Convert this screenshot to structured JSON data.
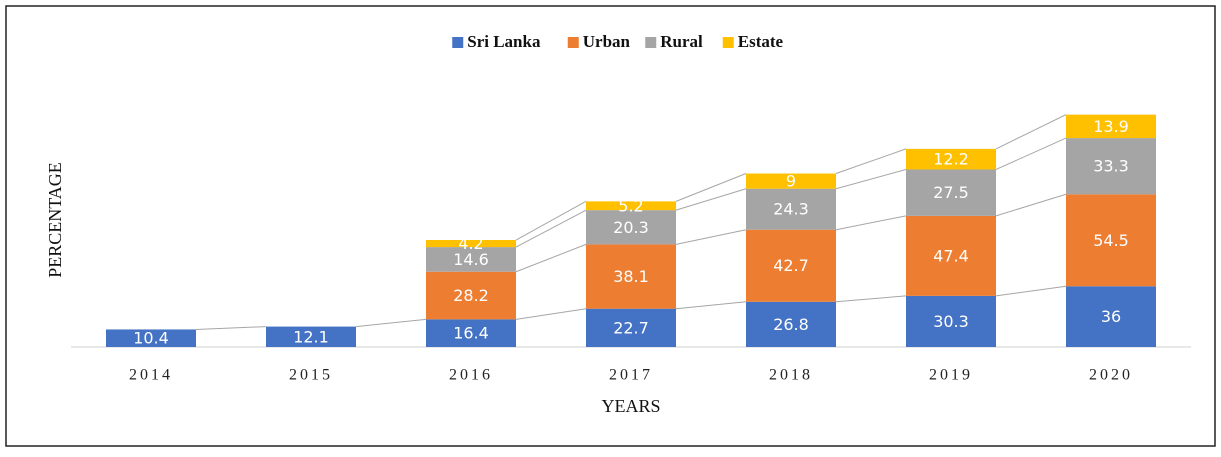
{
  "chart_data": {
    "type": "stacked_bar",
    "x_label": "YEARS",
    "y_label": "PERCENTAGE",
    "categories": [
      "2014",
      "2015",
      "2016",
      "2017",
      "2018",
      "2019",
      "2020"
    ],
    "series": [
      {
        "name": "Sri Lanka",
        "color": "#4472c4",
        "values": [
          10.4,
          12.1,
          16.4,
          22.7,
          26.8,
          30.3,
          36
        ]
      },
      {
        "name": "Urban",
        "color": "#ed7d31",
        "values": [
          null,
          null,
          28.2,
          38.1,
          42.7,
          47.4,
          54.5
        ]
      },
      {
        "name": "Rural",
        "color": "#a5a5a5",
        "values": [
          null,
          null,
          14.6,
          20.3,
          24.3,
          27.5,
          33.3
        ]
      },
      {
        "name": "Estate",
        "color": "#ffc000",
        "values": [
          null,
          null,
          4.2,
          5.2,
          9,
          12.2,
          13.9
        ]
      }
    ],
    "ylim": [
      0,
      160
    ],
    "legend": "top",
    "series_lines": true
  }
}
